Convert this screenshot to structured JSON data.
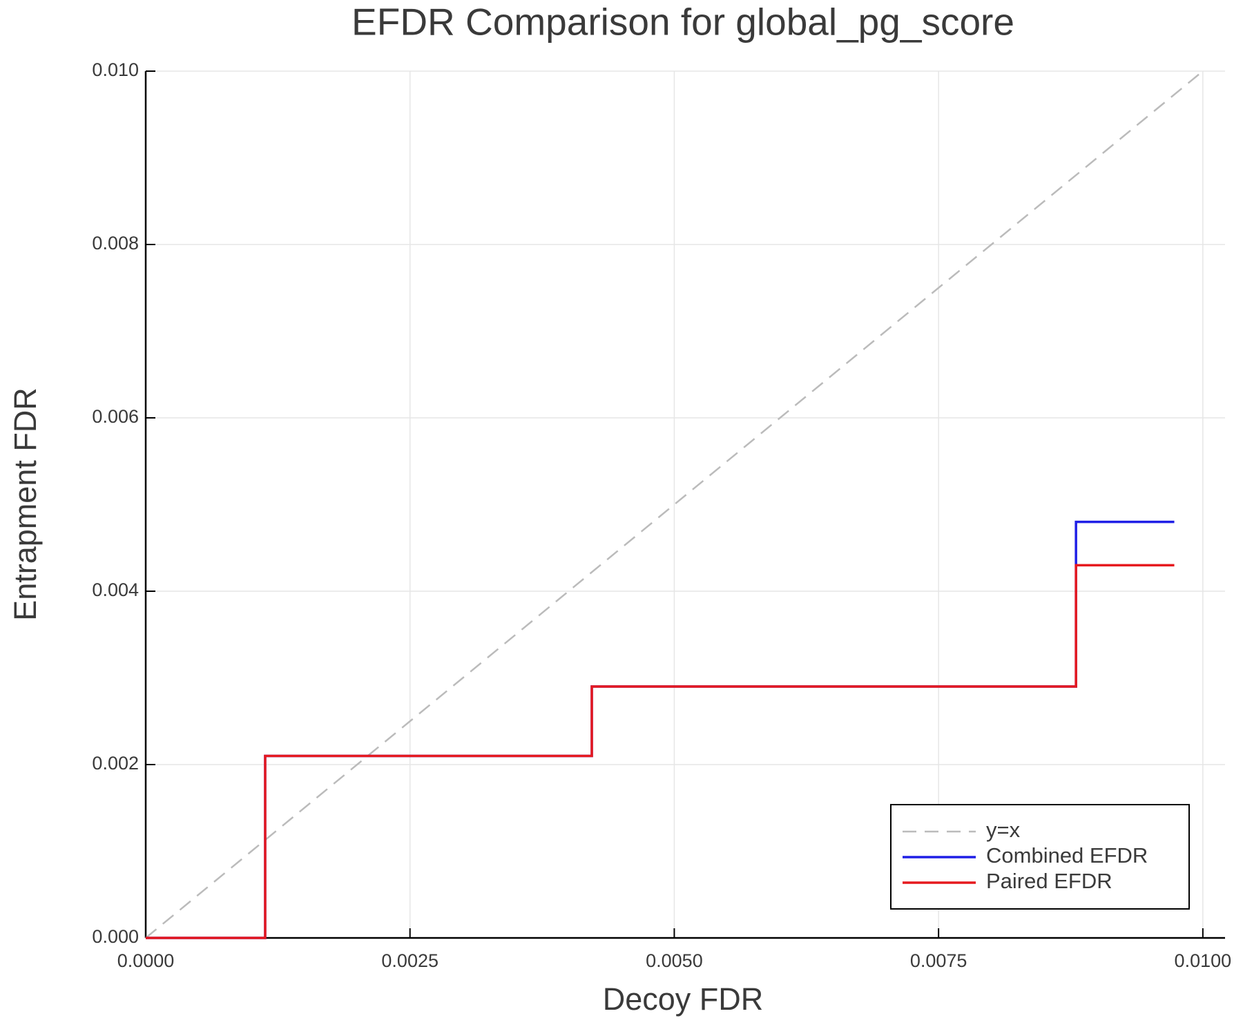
{
  "chart_data": {
    "type": "line",
    "title": "EFDR Comparison for global_pg_score",
    "x_label": "Decoy FDR",
    "y_label": "Entrapment FDR",
    "xlim": [
      0,
      0.01021
    ],
    "ylim": [
      0,
      0.01
    ],
    "xticks": [
      {
        "value": 0,
        "label": "0.0000"
      },
      {
        "value": 0.0025,
        "label": "0.0025"
      },
      {
        "value": 0.005,
        "label": "0.0050"
      },
      {
        "value": 0.0075,
        "label": "0.0075"
      },
      {
        "value": 0.01,
        "label": "0.0100"
      }
    ],
    "yticks": [
      {
        "value": 0,
        "label": "0.000"
      },
      {
        "value": 0.002,
        "label": "0.002"
      },
      {
        "value": 0.004,
        "label": "0.004"
      },
      {
        "value": 0.006,
        "label": "0.006"
      },
      {
        "value": 0.008,
        "label": "0.008"
      },
      {
        "value": 0.01,
        "label": "0.010"
      }
    ],
    "grid": true,
    "legend": "lower right",
    "series": [
      {
        "name": "y=x",
        "color": "#bbbbbb",
        "dashed": true,
        "x": [
          0,
          0.01
        ],
        "values": [
          0,
          0.01
        ]
      },
      {
        "name": "Combined EFDR",
        "color": "#1f1fe6",
        "step": "post",
        "x": [
          0,
          0.00113,
          0.00422,
          0.0088,
          0.00973
        ],
        "values": [
          0,
          0.0021,
          0.0029,
          0.0048,
          0.0048
        ]
      },
      {
        "name": "Paired EFDR",
        "color": "#e6191e",
        "step": "post",
        "x": [
          0,
          0.00113,
          0.00422,
          0.0088,
          0.00973
        ],
        "values": [
          0,
          0.0021,
          0.0029,
          0.0043,
          0.0043
        ]
      }
    ]
  }
}
